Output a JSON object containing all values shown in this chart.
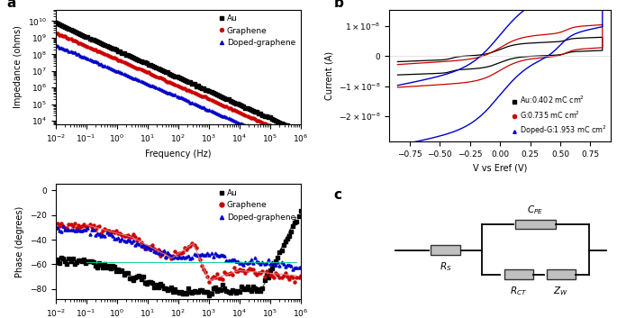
{
  "color_au": "#000000",
  "color_graphene": "#cc0000",
  "color_doped": "#0000cc",
  "color_fit_graphene": "#e08080",
  "color_fit_doped": "#00cc99",
  "panel_a_label": "a",
  "panel_b_label": "b",
  "panel_c_label": "c",
  "legend_imp": [
    "Au",
    "Graphene",
    "Doped-graphene"
  ],
  "legend_phase": [
    "Au",
    "Graphene",
    "Doped-graphene"
  ],
  "xlabel_freq": "Frequency (Hz)",
  "ylabel_imp": "Impedance (ohms)",
  "ylabel_phase": "Phase (degrees)",
  "ylabel_cv": "Current (A)",
  "xlabel_cv": "V vs Eref (V)"
}
